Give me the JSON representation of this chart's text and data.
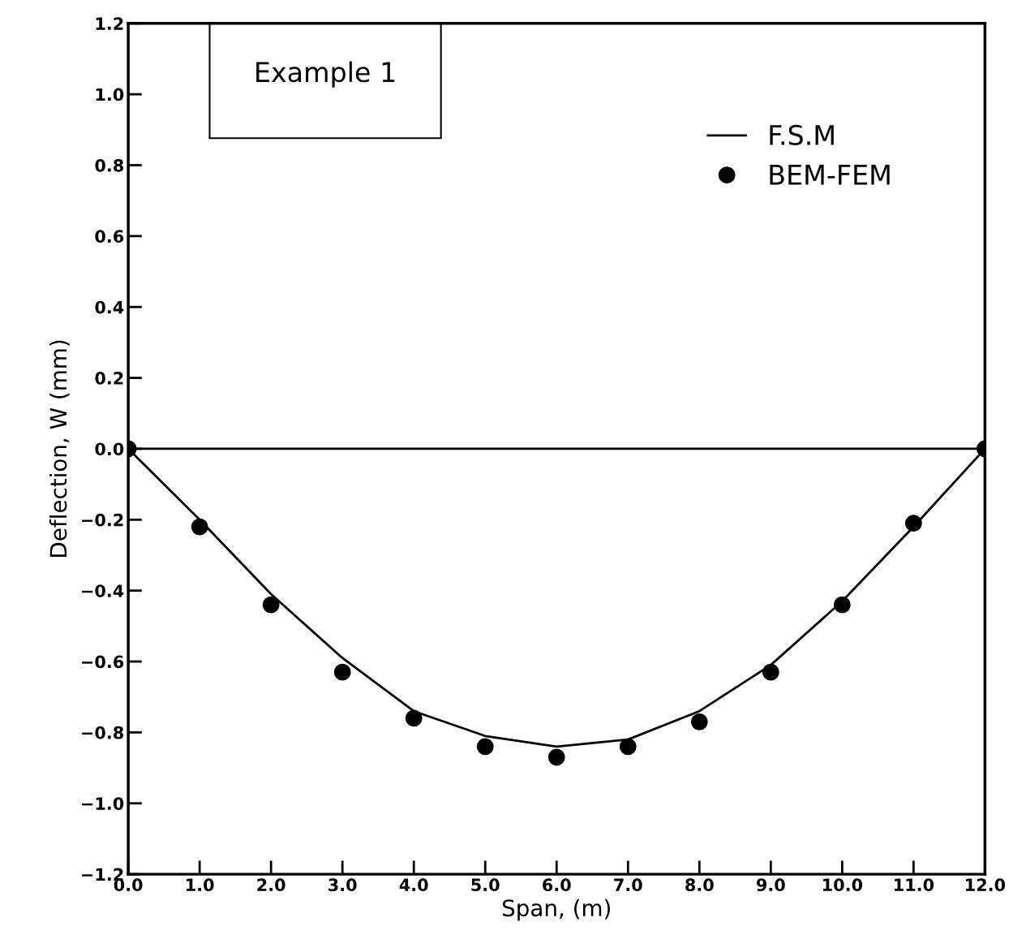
{
  "chart_data": {
    "type": "line",
    "xlabel": "Span, (m)",
    "ylabel": "Deflection, W (mm)",
    "annotations": [
      "Example 1"
    ],
    "series": [
      {
        "name": "F.S.M",
        "color": "#000000",
        "x": [
          0,
          1,
          2,
          3,
          4,
          5,
          6,
          7,
          8,
          9,
          10,
          11,
          12
        ],
        "values": [
          0,
          -0.2,
          -0.41,
          -0.59,
          -0.74,
          -0.81,
          -0.84,
          -0.82,
          -0.74,
          -0.61,
          -0.43,
          -0.22,
          0
        ]
      },
      {
        "name": "BEM-FEM",
        "type": "scatter",
        "color": "#000000",
        "marker": "circle",
        "x": [
          0,
          1,
          2,
          3,
          4,
          5,
          6,
          7,
          8,
          9,
          10,
          11,
          12
        ],
        "values": [
          0,
          -0.22,
          -0.44,
          -0.63,
          -0.76,
          -0.84,
          -0.87,
          -0.84,
          -0.77,
          -0.63,
          -0.44,
          -0.21,
          0
        ]
      }
    ],
    "ref_lines": [
      {
        "axis": "y",
        "value": 0,
        "color": "#000000"
      }
    ],
    "xlim": [
      0,
      12
    ],
    "ylim": [
      -1.2,
      1.2
    ],
    "xticks": [
      {
        "value": 0,
        "label": "0.0"
      },
      {
        "value": 1,
        "label": "1.0"
      },
      {
        "value": 2,
        "label": "2.0"
      },
      {
        "value": 3,
        "label": "3.0"
      },
      {
        "value": 4,
        "label": "4.0"
      },
      {
        "value": 5,
        "label": "5.0"
      },
      {
        "value": 6,
        "label": "6.0"
      },
      {
        "value": 7,
        "label": "7.0"
      },
      {
        "value": 8,
        "label": "8.0"
      },
      {
        "value": 9,
        "label": "9.0"
      },
      {
        "value": 10,
        "label": "10.0"
      },
      {
        "value": 11,
        "label": "11.0"
      },
      {
        "value": 12,
        "label": "12.0"
      }
    ],
    "yticks": [
      {
        "value": -1.2,
        "label": "−1.2"
      },
      {
        "value": -1.0,
        "label": "−1.0"
      },
      {
        "value": -0.8,
        "label": "−0.8"
      },
      {
        "value": -0.6,
        "label": "−0.6"
      },
      {
        "value": -0.4,
        "label": "−0.4"
      },
      {
        "value": -0.2,
        "label": "−0.2"
      },
      {
        "value": 0,
        "label": "0.0"
      },
      {
        "value": 0.2,
        "label": "0.2"
      },
      {
        "value": 0.4,
        "label": "0.4"
      },
      {
        "value": 0.6,
        "label": "0.6"
      },
      {
        "value": 0.8,
        "label": "0.8"
      },
      {
        "value": 1.0,
        "label": "1.0"
      },
      {
        "value": 1.2,
        "label": "1.2"
      }
    ],
    "grid": false,
    "legend": "top right"
  }
}
